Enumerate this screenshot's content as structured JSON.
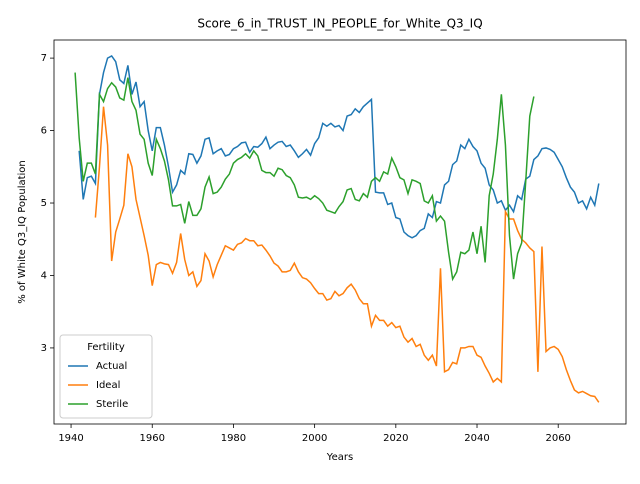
{
  "chart_data": {
    "type": "line",
    "title": "Score_6_in_TRUST_IN_PEOPLE_for_White_Q3_IQ",
    "xlabel": "Years",
    "ylabel": "% of White Q3_IQ Population",
    "legend_title": "Fertility",
    "legend": "lower left",
    "xlim": [
      1935.8,
      2076.7
    ],
    "ylim": [
      1.95,
      7.25
    ],
    "xticks": [
      1940,
      1960,
      1980,
      2000,
      2020,
      2040,
      2060
    ],
    "yticks": [
      3,
      4,
      5,
      6,
      7
    ],
    "x": [
      1941,
      1942,
      1943,
      1944,
      1945,
      1946,
      1947,
      1948,
      1949,
      1950,
      1951,
      1952,
      1953,
      1954,
      1955,
      1956,
      1957,
      1958,
      1959,
      1960,
      1961,
      1962,
      1963,
      1964,
      1965,
      1966,
      1967,
      1968,
      1969,
      1970,
      1971,
      1972,
      1973,
      1974,
      1975,
      1976,
      1977,
      1978,
      1979,
      1980,
      1981,
      1982,
      1983,
      1984,
      1985,
      1986,
      1987,
      1988,
      1989,
      1990,
      1991,
      1992,
      1993,
      1994,
      1995,
      1996,
      1997,
      1998,
      1999,
      2000,
      2001,
      2002,
      2003,
      2004,
      2005,
      2006,
      2007,
      2008,
      2009,
      2010,
      2011,
      2012,
      2013,
      2014,
      2015,
      2016,
      2017,
      2018,
      2019,
      2020,
      2021,
      2022,
      2023,
      2024,
      2025,
      2026,
      2027,
      2028,
      2029,
      2030,
      2031,
      2032,
      2033,
      2034,
      2035,
      2036,
      2037,
      2038,
      2039,
      2040,
      2041,
      2042,
      2043,
      2044,
      2045,
      2046,
      2047,
      2048,
      2049,
      2050,
      2051,
      2052,
      2053,
      2054,
      2055,
      2056,
      2057,
      2058,
      2059,
      2060,
      2061,
      2062,
      2063,
      2064,
      2065,
      2066,
      2067,
      2068,
      2069,
      2070
    ],
    "series": [
      {
        "name": "Actual",
        "color": "#1f77b4",
        "values": [
          null,
          5.72,
          5.05,
          5.35,
          5.37,
          5.27,
          6.5,
          6.8,
          7.0,
          7.03,
          6.95,
          6.7,
          6.65,
          6.9,
          6.5,
          6.67,
          6.33,
          6.4,
          6.0,
          5.72,
          6.04,
          6.04,
          5.8,
          5.5,
          5.15,
          5.25,
          5.45,
          5.4,
          5.68,
          5.67,
          5.55,
          5.65,
          5.88,
          5.9,
          5.68,
          5.72,
          5.75,
          5.65,
          5.67,
          5.75,
          5.78,
          5.83,
          5.84,
          5.7,
          5.78,
          5.77,
          5.82,
          5.91,
          5.75,
          5.8,
          5.84,
          5.85,
          5.78,
          5.8,
          5.72,
          5.63,
          5.68,
          5.74,
          5.66,
          5.82,
          5.9,
          6.1,
          6.06,
          6.1,
          6.05,
          6.07,
          6.0,
          6.2,
          6.22,
          6.3,
          6.25,
          6.33,
          6.38,
          6.43,
          5.15,
          5.14,
          5.14,
          4.98,
          5.0,
          4.8,
          4.78,
          4.6,
          4.55,
          4.52,
          4.55,
          4.62,
          4.65,
          4.85,
          4.8,
          5.02,
          5.0,
          5.25,
          5.3,
          5.53,
          5.58,
          5.8,
          5.75,
          5.88,
          5.78,
          5.72,
          5.55,
          5.48,
          5.25,
          5.18,
          5.0,
          5.03,
          4.9,
          4.97,
          4.88,
          5.1,
          5.05,
          5.33,
          5.37,
          5.6,
          5.65,
          5.75,
          5.76,
          5.74,
          5.7,
          5.6,
          5.5,
          5.35,
          5.22,
          5.15,
          5.0,
          5.03,
          4.92,
          5.08,
          4.97,
          5.27
        ]
      },
      {
        "name": "Ideal",
        "color": "#ff7f0e",
        "values": [
          null,
          null,
          null,
          null,
          null,
          4.8,
          5.5,
          6.33,
          5.8,
          4.2,
          4.6,
          4.78,
          4.97,
          5.68,
          5.5,
          5.05,
          4.8,
          4.55,
          4.28,
          3.86,
          4.15,
          4.18,
          4.16,
          4.15,
          4.03,
          4.18,
          4.58,
          4.22,
          4.0,
          4.05,
          3.85,
          3.93,
          4.3,
          4.2,
          3.98,
          4.15,
          4.28,
          4.41,
          4.38,
          4.35,
          4.43,
          4.45,
          4.51,
          4.48,
          4.48,
          4.41,
          4.42,
          4.35,
          4.27,
          4.17,
          4.13,
          4.05,
          4.05,
          4.07,
          4.17,
          4.05,
          3.97,
          3.95,
          3.9,
          3.82,
          3.75,
          3.75,
          3.66,
          3.68,
          3.78,
          3.72,
          3.75,
          3.83,
          3.88,
          3.8,
          3.68,
          3.61,
          3.61,
          3.3,
          3.45,
          3.38,
          3.38,
          3.3,
          3.35,
          3.28,
          3.3,
          3.15,
          3.08,
          3.13,
          3.02,
          3.05,
          2.9,
          2.83,
          2.9,
          2.75,
          4.1,
          2.67,
          2.7,
          2.8,
          2.78,
          3.0,
          3.0,
          3.02,
          3.02,
          2.9,
          2.87,
          2.75,
          2.65,
          2.53,
          2.58,
          2.53,
          4.88,
          4.78,
          4.78,
          4.62,
          4.5,
          4.45,
          4.38,
          4.33,
          2.67,
          4.4,
          2.95,
          3.0,
          3.02,
          2.98,
          2.88,
          2.7,
          2.55,
          2.42,
          2.38,
          2.4,
          2.37,
          2.34,
          2.33,
          2.25
        ]
      },
      {
        "name": "Sterile",
        "color": "#2ca02c",
        "values": [
          6.8,
          5.9,
          5.3,
          5.55,
          5.55,
          5.4,
          6.5,
          6.4,
          6.58,
          6.66,
          6.6,
          6.45,
          6.42,
          6.73,
          6.4,
          6.28,
          5.95,
          5.88,
          5.55,
          5.38,
          5.88,
          5.75,
          5.58,
          5.32,
          4.96,
          4.96,
          4.98,
          4.72,
          5.02,
          4.83,
          4.83,
          4.92,
          5.22,
          5.36,
          5.13,
          5.15,
          5.22,
          5.33,
          5.4,
          5.55,
          5.6,
          5.63,
          5.68,
          5.62,
          5.72,
          5.65,
          5.45,
          5.42,
          5.42,
          5.37,
          5.48,
          5.46,
          5.38,
          5.35,
          5.25,
          5.08,
          5.07,
          5.08,
          5.05,
          5.1,
          5.06,
          5.0,
          4.9,
          4.88,
          4.86,
          4.95,
          5.02,
          5.18,
          5.2,
          5.05,
          5.03,
          5.13,
          5.08,
          5.3,
          5.35,
          5.3,
          5.43,
          5.4,
          5.62,
          5.5,
          5.35,
          5.32,
          5.13,
          5.32,
          5.3,
          5.27,
          5.03,
          5.0,
          5.1,
          4.75,
          4.82,
          4.75,
          4.32,
          3.95,
          4.05,
          4.32,
          4.3,
          4.35,
          4.6,
          4.3,
          4.68,
          4.18,
          5.1,
          5.4,
          5.88,
          6.5,
          5.8,
          4.55,
          3.95,
          4.3,
          4.45,
          5.3,
          6.2,
          6.47,
          null,
          null,
          null,
          null,
          null,
          null,
          null,
          null,
          null,
          null,
          null,
          null,
          null,
          null,
          null,
          null
        ]
      }
    ]
  }
}
